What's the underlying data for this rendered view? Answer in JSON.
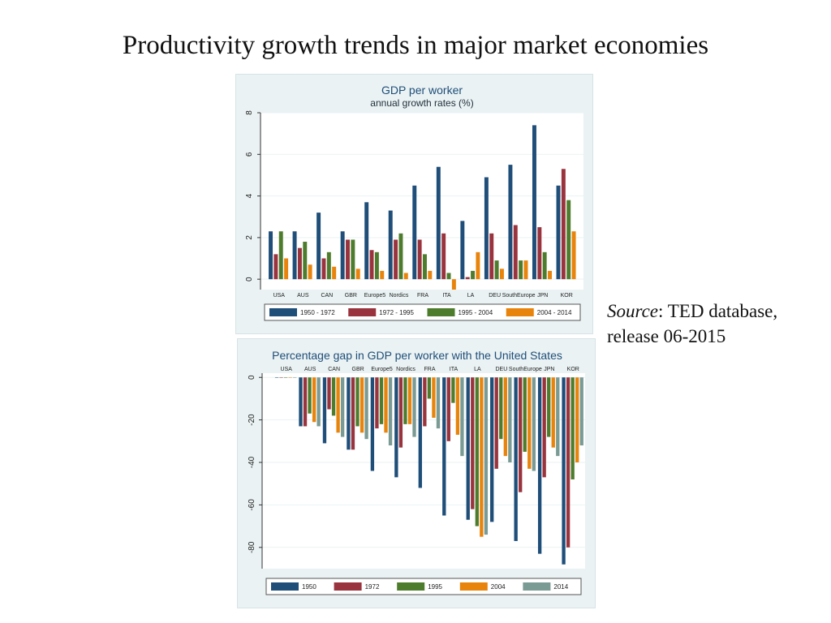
{
  "slide": {
    "title": "Productivity growth trends in major market economies"
  },
  "source": {
    "label": "Source",
    "text": ": TED database,",
    "line2": "release 06-2015"
  },
  "chart_data": [
    {
      "type": "bar",
      "title": "GDP per worker",
      "subtitle": "annual growth rates (%)",
      "categories": [
        "USA",
        "AUS",
        "CAN",
        "GBR",
        "Europe5",
        "Nordics",
        "FRA",
        "ITA",
        "LA",
        "DEU",
        "SouthEurope",
        "JPN",
        "KOR"
      ],
      "ylim": [
        -0.5,
        8
      ],
      "yticks": [
        0,
        2,
        4,
        6,
        8
      ],
      "legend_position": "bottom",
      "series": [
        {
          "name": "1950 - 1972",
          "color": "#1f4e79",
          "values": [
            2.3,
            2.3,
            3.2,
            2.3,
            3.7,
            3.3,
            4.5,
            5.4,
            2.8,
            4.9,
            5.5,
            7.4,
            4.5
          ]
        },
        {
          "name": "1972 - 1995",
          "color": "#99333d",
          "values": [
            1.2,
            1.5,
            1.0,
            1.9,
            1.4,
            1.9,
            1.9,
            2.2,
            0.1,
            2.2,
            2.6,
            2.5,
            5.3
          ]
        },
        {
          "name": "1995 - 2004",
          "color": "#4e7c2d",
          "values": [
            2.3,
            1.8,
            1.3,
            1.9,
            1.3,
            2.2,
            1.2,
            0.3,
            0.4,
            0.9,
            0.9,
            1.3,
            3.8
          ]
        },
        {
          "name": "2004 - 2014",
          "color": "#e8830c",
          "values": [
            1.0,
            0.7,
            0.6,
            0.5,
            0.4,
            0.3,
            0.4,
            -0.5,
            1.3,
            0.5,
            0.9,
            0.4,
            2.3
          ]
        }
      ]
    },
    {
      "type": "bar",
      "title": "Percentage gap in GDP per worker with the United States",
      "categories": [
        "USA",
        "AUS",
        "CAN",
        "GBR",
        "Europe5",
        "Nordics",
        "FRA",
        "ITA",
        "LA",
        "DEU",
        "SouthEurope",
        "JPN",
        "KOR"
      ],
      "ylim": [
        -90,
        2
      ],
      "yticks": [
        0,
        -20,
        -40,
        -60,
        -80
      ],
      "legend_position": "bottom",
      "series": [
        {
          "name": "1950",
          "color": "#1f4e79",
          "values": [
            0,
            -23,
            -31,
            -34,
            -44,
            -47,
            -52,
            -65,
            -67,
            -68,
            -77,
            -83,
            -88
          ]
        },
        {
          "name": "1972",
          "color": "#99333d",
          "values": [
            0,
            -23,
            -15,
            -34,
            -24,
            -33,
            -23,
            -30,
            -62,
            -43,
            -54,
            -47,
            -80
          ]
        },
        {
          "name": "1995",
          "color": "#4e7c2d",
          "values": [
            0,
            -17,
            -18,
            -23,
            -22,
            -22,
            -10,
            -12,
            -70,
            -29,
            -35,
            -28,
            -48
          ]
        },
        {
          "name": "2004",
          "color": "#e8830c",
          "values": [
            0,
            -21,
            -26,
            -26,
            -26,
            -22,
            -19,
            -27,
            -75,
            -37,
            -43,
            -33,
            -40
          ]
        },
        {
          "name": "2014",
          "color": "#7a9a94",
          "values": [
            0,
            -23,
            -28,
            -29,
            -32,
            -28,
            -24,
            -37,
            -74,
            -40,
            -44,
            -37,
            -32
          ]
        }
      ]
    }
  ]
}
